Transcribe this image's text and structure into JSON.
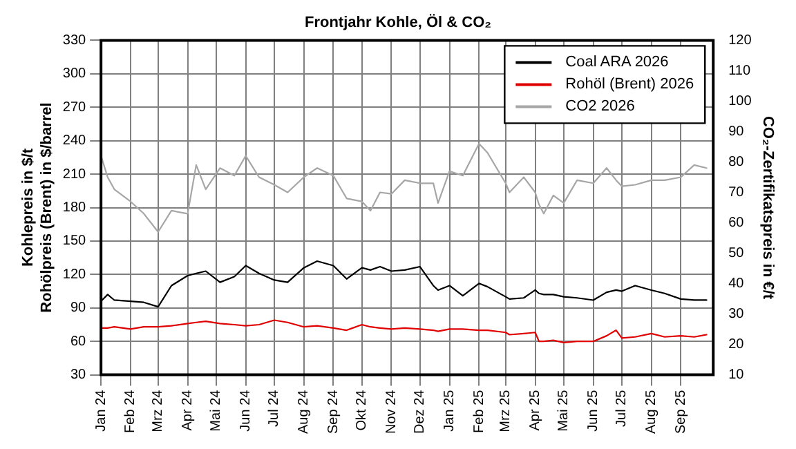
{
  "chart_data": {
    "type": "line",
    "title": "Frontjahr Kohle, Öl & CO₂",
    "ylabel": "Kohlepreis in $/t\nRohölpreis (Brent) in $/barrel",
    "y2label": "CO₂-Zertifikatspreis in €/t",
    "x": [
      "2024-01-01",
      "2024-01-08",
      "2024-01-15",
      "2024-02-01",
      "2024-02-15",
      "2024-03-01",
      "2024-03-15",
      "2024-04-01",
      "2024-04-10",
      "2024-04-20",
      "2024-05-05",
      "2024-05-20",
      "2024-06-01",
      "2024-06-15",
      "2024-07-01",
      "2024-07-15",
      "2024-08-01",
      "2024-08-15",
      "2024-09-01",
      "2024-09-15",
      "2024-10-01",
      "2024-10-10",
      "2024-10-20",
      "2024-11-01",
      "2024-11-15",
      "2024-12-01",
      "2024-12-15",
      "2024-12-20",
      "2025-01-01",
      "2025-01-15",
      "2025-02-01",
      "2025-02-10",
      "2025-03-01",
      "2025-03-05",
      "2025-03-20",
      "2025-04-01",
      "2025-04-05",
      "2025-04-10",
      "2025-04-20",
      "2025-05-01",
      "2025-05-15",
      "2025-06-01",
      "2025-06-15",
      "2025-06-25",
      "2025-07-01",
      "2025-07-15",
      "2025-08-01",
      "2025-08-15",
      "2025-09-01",
      "2025-09-15",
      "2025-09-28"
    ],
    "series": [
      {
        "name": "Coal ARA 2026",
        "color": "#000000",
        "values": [
          96,
          102,
          97,
          96,
          95,
          91,
          110,
          119,
          121,
          123,
          113,
          118,
          128,
          121,
          115,
          113,
          126,
          132,
          128,
          116,
          126,
          124,
          127,
          123,
          124,
          127,
          110,
          106,
          110,
          101,
          112,
          109,
          100,
          98,
          99,
          106,
          103,
          102,
          102,
          100,
          99,
          97,
          104,
          106,
          105,
          110,
          106,
          103,
          98,
          97,
          97
        ]
      },
      {
        "name": "Rohöl (Brent) 2026",
        "color": "#e00000",
        "values": [
          72,
          72,
          73,
          71,
          73,
          73,
          74,
          76,
          77,
          78,
          76,
          75,
          74,
          75,
          79,
          77,
          73,
          74,
          72,
          70,
          75,
          73,
          72,
          71,
          72,
          71,
          70,
          69,
          71,
          71,
          70,
          70,
          68,
          66,
          67,
          68,
          60,
          60,
          61,
          59,
          60,
          60,
          65,
          70,
          63,
          64,
          67,
          64,
          65,
          64,
          66
        ]
      },
      {
        "name": "CO2 2026",
        "color": "#a6a6a6",
        "axis": "y2",
        "values": [
          82,
          75,
          71,
          67,
          63,
          57,
          64,
          63,
          79,
          71,
          78,
          75.5,
          82,
          75,
          72.5,
          70,
          75,
          78,
          75.5,
          68,
          67,
          64,
          70,
          69.5,
          74,
          73,
          73,
          66.5,
          77,
          75.5,
          86,
          83,
          73,
          70,
          75,
          70,
          66,
          63,
          69,
          66.5,
          74,
          73,
          78,
          74,
          72,
          72.5,
          74,
          74,
          75,
          79,
          78
        ]
      }
    ],
    "xlim": [
      "2024-01-01",
      "2025-10-05"
    ],
    "xticks": [
      {
        "value": "2024-01-01",
        "label": "Jan 24"
      },
      {
        "value": "2024-02-01",
        "label": "Feb 24"
      },
      {
        "value": "2024-03-01",
        "label": "Mrz 24"
      },
      {
        "value": "2024-04-01",
        "label": "Apr 24"
      },
      {
        "value": "2024-05-01",
        "label": "Mai 24"
      },
      {
        "value": "2024-06-01",
        "label": "Jun 24"
      },
      {
        "value": "2024-07-01",
        "label": "Jul 24"
      },
      {
        "value": "2024-08-01",
        "label": "Aug 24"
      },
      {
        "value": "2024-09-01",
        "label": "Sep 24"
      },
      {
        "value": "2024-10-01",
        "label": "Okt 24"
      },
      {
        "value": "2024-11-01",
        "label": "Nov 24"
      },
      {
        "value": "2024-12-01",
        "label": "Dez 24"
      },
      {
        "value": "2025-01-01",
        "label": "Jan 25"
      },
      {
        "value": "2025-02-01",
        "label": "Feb 25"
      },
      {
        "value": "2025-03-01",
        "label": "Mrz 25"
      },
      {
        "value": "2025-04-01",
        "label": "Apr 25"
      },
      {
        "value": "2025-05-01",
        "label": "Mai 25"
      },
      {
        "value": "2025-06-01",
        "label": "Jun 25"
      },
      {
        "value": "2025-07-01",
        "label": "Jul 25"
      },
      {
        "value": "2025-08-01",
        "label": "Aug 25"
      },
      {
        "value": "2025-09-01",
        "label": "Sep 25"
      }
    ],
    "ylim": [
      30,
      330
    ],
    "yticks": [
      30,
      60,
      90,
      120,
      150,
      180,
      210,
      240,
      270,
      300,
      330
    ],
    "y2lim": [
      10,
      120
    ],
    "y2ticks": [
      10,
      20,
      30,
      40,
      50,
      60,
      70,
      80,
      90,
      100,
      110,
      120
    ],
    "grid": true,
    "legend": "top right",
    "marker": "none",
    "line_style": "solid"
  }
}
